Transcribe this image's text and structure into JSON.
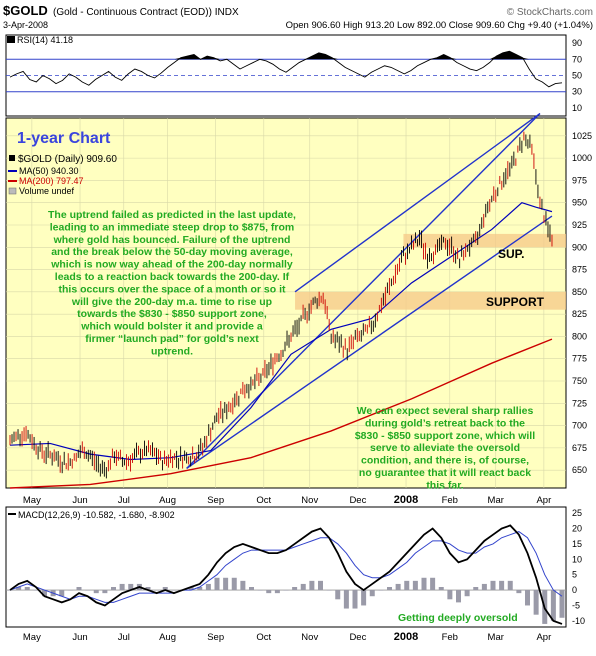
{
  "header": {
    "symbol": "$GOLD",
    "description": "(Gold - Continuous Contract (EOD))  INDX",
    "watermark": "© StockCharts.com",
    "date": "3-Apr-2008",
    "ohlc": "Open 906.60  High 913.20  Low 892.00  Close 909.60  Chg +9.40 (+1.04%)"
  },
  "rsi": {
    "label": "RSI(14) 41.18",
    "ticks": [
      "90",
      "70",
      "50",
      "30",
      "10"
    ],
    "values": [
      48,
      52,
      55,
      45,
      42,
      50,
      46,
      40,
      44,
      52,
      48,
      42,
      38,
      45,
      50,
      55,
      48,
      44,
      52,
      58,
      55,
      50,
      47,
      53,
      60,
      66,
      72,
      74,
      76,
      70,
      74,
      72,
      68,
      70,
      64,
      58,
      62,
      66,
      70,
      68,
      64,
      58,
      54,
      60,
      66,
      70,
      74,
      78,
      76,
      72,
      66,
      60,
      56,
      52,
      48,
      54,
      58,
      62,
      60,
      56,
      52,
      56,
      62,
      66,
      70,
      72,
      76,
      72,
      66,
      62,
      58,
      56,
      60,
      66,
      74,
      78,
      80,
      76,
      72,
      58,
      46,
      42,
      36,
      40,
      41
    ]
  },
  "annotations": {
    "one_year": "1-year Chart",
    "commentary": "The uptrend failed as predicted in the last update,\nleading to an immediate steep drop to $875, from\nwhere gold has bounced. Failure of the uptrend\nand the break below the 50-day moving average,\nwhich is now way ahead of the 200-day normally\nleads to a reaction back towards the 200-day. If\nthis occurs over the space of a month or so it\nwill give the 200-day m.a. time to rise up\ntowards the $830 - $850 support zone,\nwhich would bolster it and provide a\nfirmer “launch pad” for gold’s next\nuptrend.",
    "rallies": "We can expect several sharp rallies\nduring gold’s retreat back to the\n$830 - $850 support zone, which will\nserve to alleviate the oversold\ncondition, and there is, of course,\nno guarantee that it will react back\nthis far.",
    "sup": "SUP.",
    "support": "SUPPORT",
    "oversold": "Getting deeply oversold"
  },
  "legend": {
    "price": "$GOLD (Daily) 909.60",
    "ma50": "MA(50) 940.30",
    "ma200": "MA(200) 797.47",
    "volume": "Volume undef"
  },
  "months": [
    "May",
    "Jun",
    "Jul",
    "Aug",
    "Sep",
    "Oct",
    "Nov",
    "Dec",
    "2008",
    "Feb",
    "Mar",
    "Apr"
  ],
  "chart_data": {
    "type": "line",
    "title": "$GOLD (Gold - Continuous Contract (EOD)) INDX",
    "ylim": [
      630,
      1045
    ],
    "y_ticks": [
      650,
      675,
      700,
      725,
      750,
      775,
      800,
      825,
      850,
      875,
      900,
      925,
      950,
      975,
      1000,
      1025
    ],
    "series": [
      {
        "name": "$GOLD (Daily) 909.60",
        "color": "#000000",
        "x": [
          0,
          4,
          8,
          12,
          16,
          20,
          24,
          28,
          32,
          36,
          40,
          44,
          48,
          52,
          56,
          60,
          64,
          68,
          72,
          76,
          80,
          84,
          88,
          92,
          96,
          100,
          104,
          108,
          112,
          116,
          120,
          124,
          128,
          132,
          136,
          140,
          144,
          148,
          152,
          156,
          160,
          164,
          168,
          172,
          176,
          180,
          184,
          188,
          192,
          196,
          200,
          204,
          208,
          212,
          216,
          220,
          224,
          228,
          232,
          236,
          240,
          244,
          248,
          252,
          256,
          260,
          264,
          268,
          270
        ],
        "values": [
          682,
          690,
          692,
          680,
          670,
          668,
          662,
          658,
          662,
          672,
          666,
          655,
          652,
          666,
          660,
          662,
          668,
          672,
          668,
          660,
          664,
          664,
          665,
          666,
          676,
          695,
          712,
          718,
          728,
          740,
          745,
          752,
          762,
          775,
          785,
          800,
          812,
          828,
          840,
          845,
          800,
          792,
          785,
          798,
          802,
          812,
          830,
          850,
          870,
          890,
          900,
          910,
          890,
          896,
          905,
          900,
          885,
          900,
          905,
          935,
          955,
          970,
          985,
          1000,
          1025,
          1010,
          950,
          920,
          909
        ]
      },
      {
        "name": "MA(50) 940.30",
        "color": "#0000bb",
        "x": [
          0,
          20,
          40,
          60,
          80,
          100,
          120,
          140,
          160,
          180,
          200,
          220,
          240,
          255,
          262,
          270
        ],
        "values": [
          678,
          680,
          668,
          662,
          664,
          672,
          720,
          780,
          808,
          820,
          860,
          890,
          920,
          950,
          945,
          940
        ]
      },
      {
        "name": "MA(200) 797.47",
        "color": "#cc0000",
        "x": [
          0,
          40,
          80,
          120,
          160,
          200,
          240,
          270
        ],
        "values": [
          630,
          634,
          646,
          664,
          694,
          730,
          770,
          797
        ]
      }
    ],
    "x_ticks": [
      "May",
      "Jun",
      "Jul",
      "Aug",
      "Sep",
      "Oct",
      "Nov",
      "Dec",
      "2008",
      "Feb",
      "Mar",
      "Apr"
    ],
    "support_zone": [
      830,
      850
    ],
    "sup_zone": [
      900,
      915
    ],
    "trend_channel": [
      {
        "x": [
          88,
          264
        ],
        "values": [
          652,
          1050
        ]
      },
      {
        "x": [
          88,
          270
        ],
        "values": [
          652,
          935
        ]
      },
      {
        "x": [
          142,
          264
        ],
        "values": [
          850,
          1050
        ]
      }
    ],
    "grid": true
  },
  "macd": {
    "label": "MACD(12,26,9) -10.582, -1.680, -8.902",
    "ticks": [
      "25",
      "20",
      "15",
      "10",
      "5",
      "0",
      "-5",
      "-10"
    ],
    "macd": [
      0,
      2,
      3,
      1,
      -2,
      -3,
      -4,
      -3,
      -1,
      -2,
      -4,
      -5,
      -3,
      -1,
      0,
      1,
      0,
      -1,
      0,
      -1,
      0,
      1,
      2,
      5,
      9,
      12,
      14,
      15,
      14,
      13,
      12,
      12,
      13,
      15,
      17,
      19,
      20,
      17,
      12,
      6,
      2,
      0,
      2,
      4,
      6,
      9,
      12,
      15,
      18,
      20,
      17,
      12,
      9,
      10,
      13,
      16,
      18,
      20,
      21,
      18,
      12,
      4,
      -6,
      -10,
      -11
    ],
    "signal": [
      0,
      1,
      2,
      1,
      0,
      -1,
      -2,
      -3,
      -2,
      -2,
      -3,
      -4,
      -4,
      -3,
      -2,
      -1,
      -1,
      -1,
      -1,
      -1,
      0,
      0,
      1,
      3,
      5,
      8,
      10,
      12,
      13,
      13,
      13,
      13,
      13,
      14,
      15,
      16,
      17,
      17,
      15,
      12,
      8,
      5,
      4,
      4,
      5,
      7,
      9,
      12,
      14,
      16,
      16,
      15,
      13,
      12,
      12,
      14,
      15,
      17,
      18,
      19,
      17,
      12,
      5,
      0,
      -2
    ]
  }
}
